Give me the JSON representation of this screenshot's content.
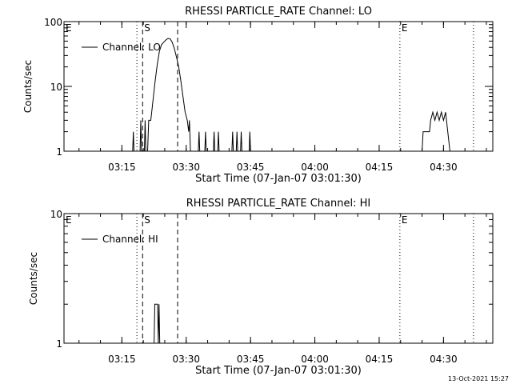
{
  "footer": {
    "timestamp": "13-Oct-2021 15:27"
  },
  "chart_data": [
    {
      "type": "line",
      "title": "RHESSI PARTICLE_RATE Channel: LO",
      "xlabel": "Start Time (07-Jan-07 03:01:30)",
      "ylabel": "Counts/sec",
      "y_scale": "log",
      "ylim": [
        1,
        100
      ],
      "y_ticks": [
        {
          "v": 1,
          "label": "1"
        },
        {
          "v": 10,
          "label": "10"
        },
        {
          "v": 100,
          "label": "100"
        }
      ],
      "xlim": [
        "03:01:30",
        "04:41:30"
      ],
      "x_ticks": [
        {
          "t": "03:15",
          "label": "03:15"
        },
        {
          "t": "03:30",
          "label": "03:30"
        },
        {
          "t": "03:45",
          "label": "03:45"
        },
        {
          "t": "04:00",
          "label": "04:00"
        },
        {
          "t": "04:15",
          "label": "04:15"
        },
        {
          "t": "04:30",
          "label": "04:30"
        }
      ],
      "legend": {
        "placement": "top-left"
      },
      "series": [
        {
          "name": "Channel: LO",
          "points": [
            [
              "03:17:30",
              1
            ],
            [
              "03:17:40",
              2
            ],
            [
              "03:17:50",
              1
            ],
            [
              "03:19:15",
              1
            ],
            [
              "03:19:25",
              3
            ],
            [
              "03:19:35",
              1
            ],
            [
              "03:20:15",
              1
            ],
            [
              "03:20:25",
              3
            ],
            [
              "03:20:35",
              1
            ],
            [
              "03:21:00",
              1
            ],
            [
              "03:21:15",
              3
            ],
            [
              "03:21:45",
              3
            ],
            [
              "03:22:15",
              6
            ],
            [
              "03:22:45",
              12
            ],
            [
              "03:23:15",
              22
            ],
            [
              "03:23:45",
              35
            ],
            [
              "03:24:15",
              44
            ],
            [
              "03:24:45",
              48
            ],
            [
              "03:25:15",
              52
            ],
            [
              "03:25:45",
              55
            ],
            [
              "03:26:15",
              54
            ],
            [
              "03:26:45",
              48
            ],
            [
              "03:27:15",
              38
            ],
            [
              "03:27:45",
              28
            ],
            [
              "03:28:15",
              20
            ],
            [
              "03:28:45",
              12
            ],
            [
              "03:29:15",
              7
            ],
            [
              "03:29:45",
              4
            ],
            [
              "03:30:15",
              3
            ],
            [
              "03:30:35",
              2
            ],
            [
              "03:30:45",
              3
            ],
            [
              "03:31:00",
              1
            ],
            [
              "03:32:50",
              1
            ],
            [
              "03:33:00",
              2
            ],
            [
              "03:33:10",
              1
            ],
            [
              "03:34:20",
              1
            ],
            [
              "03:34:30",
              2
            ],
            [
              "03:34:40",
              1
            ],
            [
              "03:36:20",
              1
            ],
            [
              "03:36:30",
              2
            ],
            [
              "03:36:40",
              1
            ],
            [
              "03:37:20",
              1
            ],
            [
              "03:37:30",
              2
            ],
            [
              "03:37:40",
              1
            ],
            [
              "03:40:40",
              1
            ],
            [
              "03:40:50",
              2
            ],
            [
              "03:41:00",
              1
            ],
            [
              "03:41:40",
              1
            ],
            [
              "03:41:50",
              2
            ],
            [
              "03:42:00",
              1
            ],
            [
              "03:42:40",
              1
            ],
            [
              "03:42:50",
              2
            ],
            [
              "03:43:00",
              1
            ],
            [
              "03:44:40",
              1
            ],
            [
              "03:44:50",
              2
            ],
            [
              "03:45:00",
              1
            ],
            [
              "04:25:00",
              1
            ],
            [
              "04:25:15",
              2
            ],
            [
              "04:26:45",
              2
            ],
            [
              "04:27:00",
              3
            ],
            [
              "04:27:30",
              4
            ],
            [
              "04:28:00",
              3
            ],
            [
              "04:28:30",
              4
            ],
            [
              "04:29:00",
              3
            ],
            [
              "04:29:30",
              4
            ],
            [
              "04:30:00",
              3
            ],
            [
              "04:30:30",
              4
            ],
            [
              "04:31:00",
              2
            ],
            [
              "04:31:30",
              1
            ]
          ]
        }
      ],
      "markers": [
        {
          "t": "03:18:30",
          "style": "dotted",
          "label": "E",
          "label_x": "03:01:30"
        },
        {
          "t": "03:19:50",
          "style": "dashed",
          "label": "S",
          "label_x": "03:19:50"
        },
        {
          "t": "03:28:00",
          "style": "dashed",
          "label": "",
          "label_x": "03:28:00"
        },
        {
          "t": "04:19:50",
          "style": "dotted",
          "label": "E",
          "label_x": "04:19:50"
        },
        {
          "t": "04:37:00",
          "style": "dotted",
          "label": "",
          "label_x": "04:37:00"
        }
      ]
    },
    {
      "type": "line",
      "title": "RHESSI PARTICLE_RATE Channel: HI",
      "xlabel": "Start Time (07-Jan-07 03:01:30)",
      "ylabel": "Counts/sec",
      "y_scale": "log",
      "ylim": [
        1,
        10
      ],
      "y_ticks": [
        {
          "v": 1,
          "label": "1"
        },
        {
          "v": 10,
          "label": "10"
        }
      ],
      "xlim": [
        "03:01:30",
        "04:41:30"
      ],
      "x_ticks": [
        {
          "t": "03:15",
          "label": "03:15"
        },
        {
          "t": "03:30",
          "label": "03:30"
        },
        {
          "t": "03:45",
          "label": "03:45"
        },
        {
          "t": "04:00",
          "label": "04:00"
        },
        {
          "t": "04:15",
          "label": "04:15"
        },
        {
          "t": "04:30",
          "label": "04:30"
        }
      ],
      "legend": {
        "placement": "top-left"
      },
      "series": [
        {
          "name": "Channel: HI",
          "points": [
            [
              "03:22:30",
              1
            ],
            [
              "03:22:40",
              2
            ],
            [
              "03:23:20",
              2
            ],
            [
              "03:23:30",
              1
            ],
            [
              "03:23:40",
              2
            ],
            [
              "03:23:50",
              1
            ]
          ]
        }
      ],
      "markers": [
        {
          "t": "03:18:30",
          "style": "dotted",
          "label": "E",
          "label_x": "03:01:30"
        },
        {
          "t": "03:19:50",
          "style": "dashed",
          "label": "S",
          "label_x": "03:19:50"
        },
        {
          "t": "03:28:00",
          "style": "dashed",
          "label": "",
          "label_x": "03:28:00"
        },
        {
          "t": "04:19:50",
          "style": "dotted",
          "label": "E",
          "label_x": "04:19:50"
        },
        {
          "t": "04:37:00",
          "style": "dotted",
          "label": "",
          "label_x": "04:37:00"
        }
      ]
    }
  ]
}
